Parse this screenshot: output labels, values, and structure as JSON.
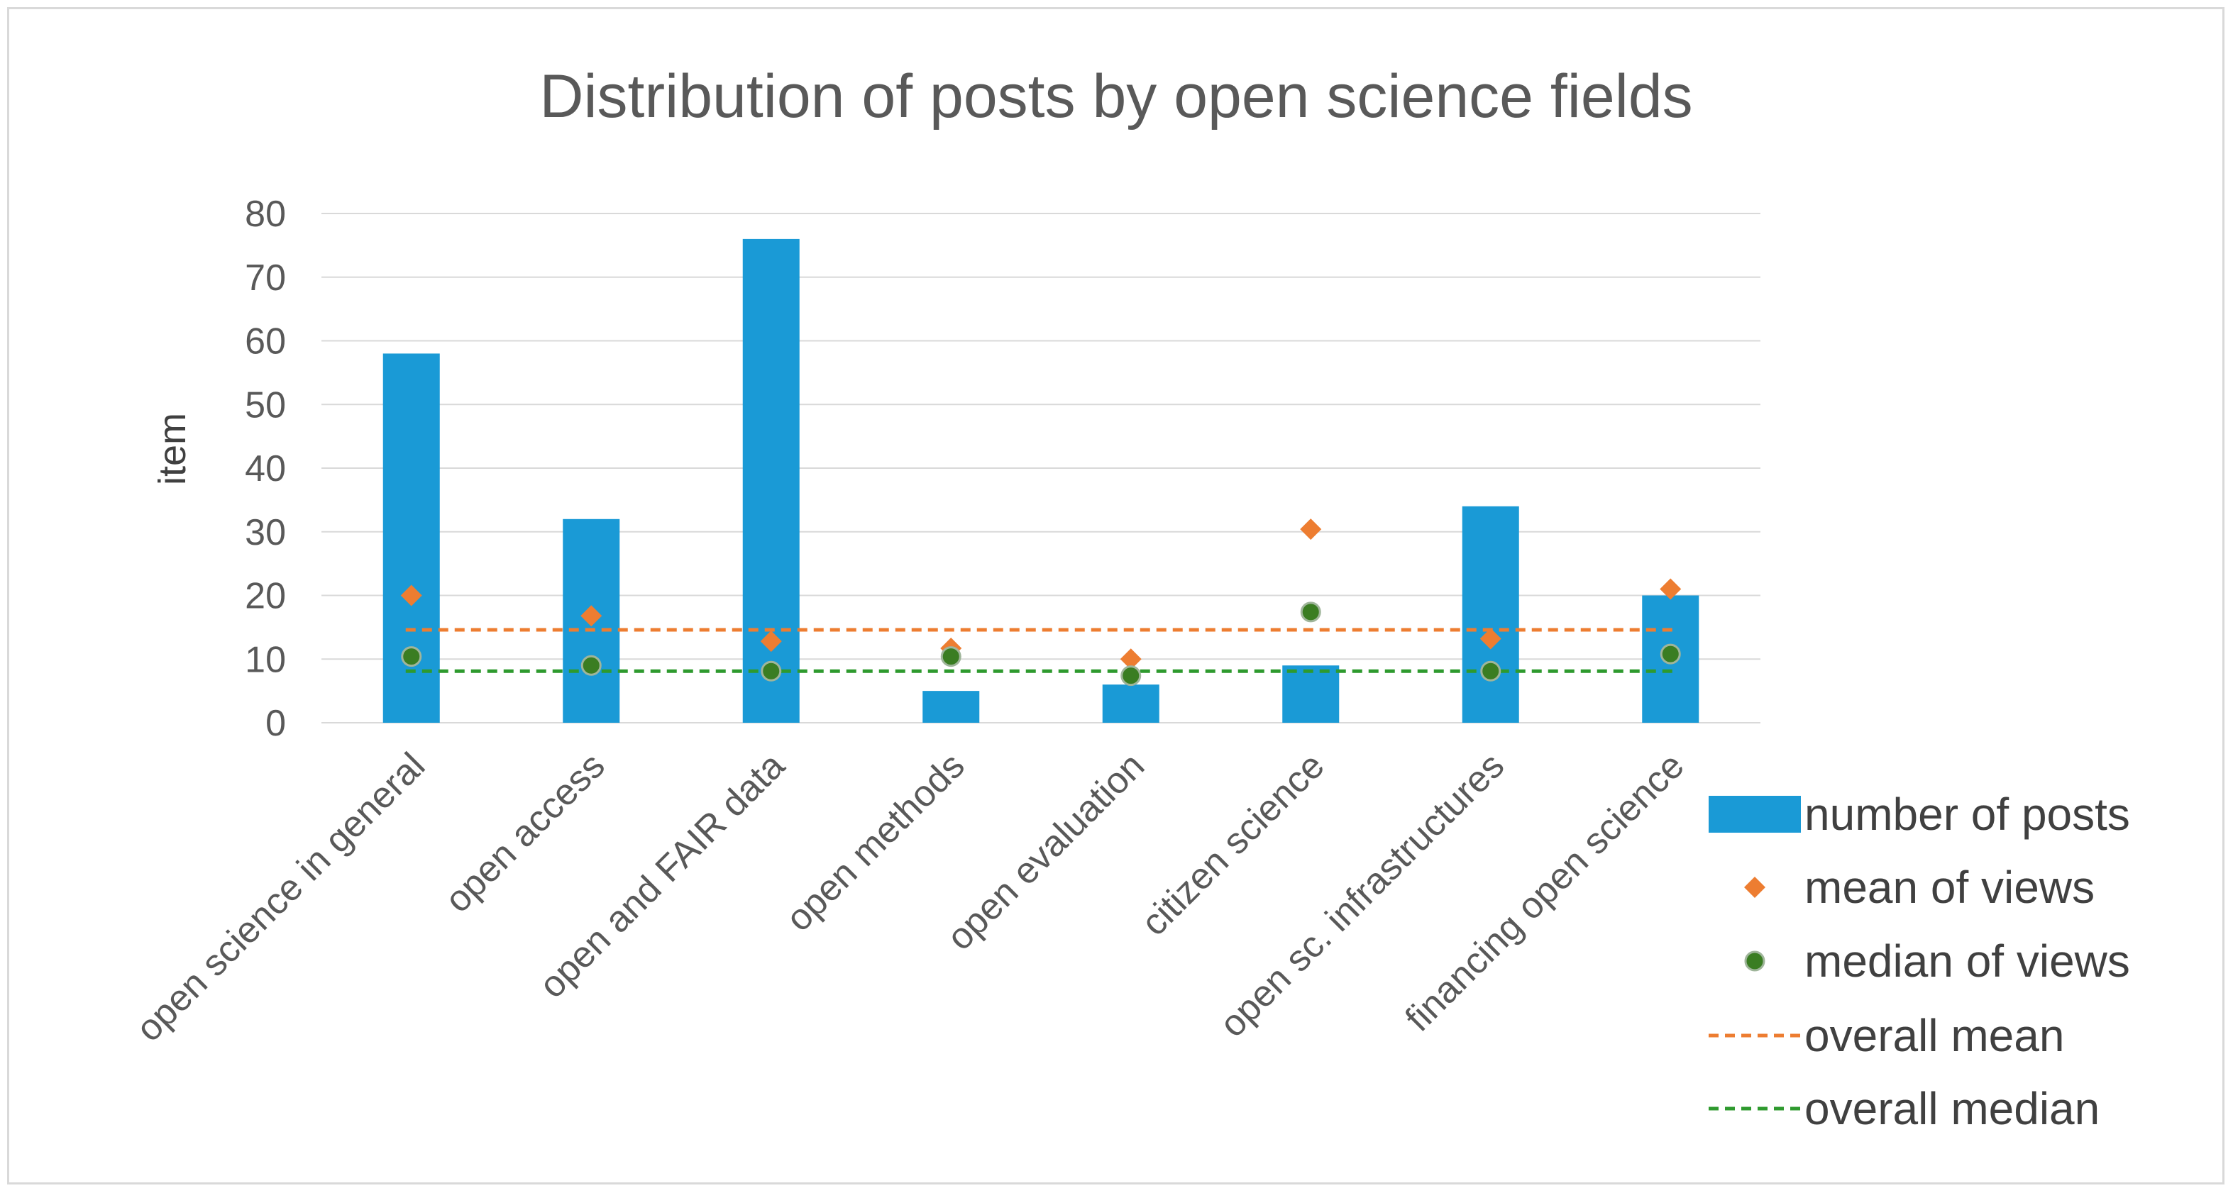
{
  "chart_data": {
    "type": "bar",
    "title": "Distribution of posts by open science fields",
    "xlabel": "",
    "ylabel": "item",
    "ylim": [
      0,
      80
    ],
    "yticks": [
      0,
      10,
      20,
      30,
      40,
      50,
      60,
      70,
      80
    ],
    "grid": true,
    "categories": [
      "open science in general",
      "open access",
      "open and FAIR data",
      "open methods",
      "open evaluation",
      "citizen science",
      "open sc. infrastructures",
      "financing open science"
    ],
    "series": [
      {
        "name": "number of posts",
        "kind": "bar",
        "color": "#1a9ad6",
        "values": [
          58,
          32,
          76,
          5,
          6,
          9,
          34,
          20
        ]
      },
      {
        "name": "mean of views",
        "kind": "marker",
        "marker": "diamond",
        "color": "#ed7d31",
        "values": [
          20,
          16.8,
          12.8,
          11.7,
          10,
          30.4,
          13.2,
          21
        ]
      },
      {
        "name": "median of views",
        "kind": "marker",
        "marker": "circle",
        "color": "#3a7d22",
        "values": [
          10.4,
          9,
          8.1,
          10.4,
          7.4,
          17.4,
          8.1,
          10.8
        ]
      },
      {
        "name": "overall mean",
        "kind": "dashed-line",
        "color": "#ed7d31",
        "value": 14.6
      },
      {
        "name": "overall median",
        "kind": "dashed-line",
        "color": "#2e9a2e",
        "value": 8.1
      }
    ],
    "legend_position": "bottom-right"
  }
}
